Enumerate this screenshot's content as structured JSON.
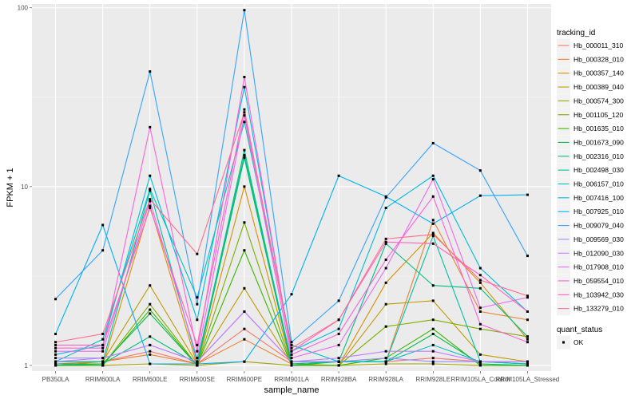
{
  "chart_data": {
    "type": "line",
    "xlabel": "sample_name",
    "ylabel": "FPKM + 1",
    "y_scale": "log10",
    "ylim": [
      0.93,
      105
    ],
    "y_ticks": [
      {
        "value": 1,
        "label": "1"
      },
      {
        "value": 10,
        "label": "10"
      },
      {
        "value": 100,
        "label": "100"
      }
    ],
    "grid": true,
    "legend_position": "right",
    "categories": [
      "PB350LA",
      "RRIM600LA",
      "RRIM600LE",
      "RRIM600SE",
      "RRIM600PE",
      "RRIM901LA",
      "RRIM928BA",
      "RRIM928LA",
      "RRIM928LE",
      "RRIM105LA_Control",
      "RRIM105LA_Stressed"
    ],
    "tick_labels": [
      "PB350LA",
      "RRIM600LA",
      "RRIM600LE",
      "RRIM600SE",
      "RRIM600PE",
      "RRIM901LA",
      "RRIM928BA",
      "RRIM928LA",
      "RRIM928LE",
      "RRIM105LA_Control",
      "RRIM105LA_Stressed"
    ],
    "series_legend_title": "tracking_id",
    "series": [
      {
        "name": "Hb_000011_310",
        "color": "#F8766D",
        "values": [
          1.05,
          1.05,
          1.2,
          1.02,
          1.6,
          1.05,
          1.05,
          1.05,
          1.1,
          1.05,
          1.02
        ]
      },
      {
        "name": "Hb_000328_010",
        "color": "#EA8331",
        "values": [
          1.02,
          1.05,
          1.15,
          1.02,
          1.4,
          1.02,
          1.05,
          1.05,
          6.5,
          2.0,
          1.8
        ]
      },
      {
        "name": "Hb_000357_140",
        "color": "#D89000",
        "values": [
          1.0,
          1.0,
          7.8,
          1.0,
          10.0,
          1.0,
          1.0,
          2.9,
          5.5,
          2.9,
          1.4
        ]
      },
      {
        "name": "Hb_000389_040",
        "color": "#C09B00",
        "values": [
          1.0,
          1.05,
          2.8,
          1.02,
          2.7,
          1.02,
          1.0,
          2.2,
          2.3,
          1.15,
          1.05
        ]
      },
      {
        "name": "Hb_000574_300",
        "color": "#A3A500",
        "values": [
          1.0,
          1.0,
          1.02,
          1.0,
          1.05,
          1.0,
          1.0,
          1.02,
          1.02,
          1.0,
          1.0
        ]
      },
      {
        "name": "Hb_001105_120",
        "color": "#7CAE00",
        "values": [
          1.0,
          1.0,
          2.2,
          1.0,
          6.3,
          1.0,
          1.0,
          1.65,
          1.8,
          1.6,
          1.45
        ]
      },
      {
        "name": "Hb_001635_010",
        "color": "#39B600",
        "values": [
          1.0,
          1.0,
          2.05,
          1.0,
          4.4,
          1.0,
          1.0,
          1.1,
          1.6,
          1.0,
          1.0
        ]
      },
      {
        "name": "Hb_001673_090",
        "color": "#00BB4E",
        "values": [
          1.0,
          1.02,
          1.95,
          1.0,
          14.5,
          1.0,
          1.05,
          1.05,
          1.5,
          1.02,
          1.0
        ]
      },
      {
        "name": "Hb_002316_010",
        "color": "#00BF7D",
        "values": [
          1.02,
          1.02,
          1.45,
          1.02,
          16.0,
          1.02,
          1.05,
          4.8,
          2.8,
          2.7,
          1.45
        ]
      },
      {
        "name": "Hb_002498_030",
        "color": "#00C1A3",
        "values": [
          1.05,
          1.05,
          9.5,
          1.05,
          15.0,
          1.05,
          1.05,
          1.05,
          5.3,
          1.05,
          1.02
        ]
      },
      {
        "name": "Hb_006157_010",
        "color": "#00BFC4",
        "values": [
          1.05,
          1.4,
          9.7,
          2.4,
          23.0,
          1.3,
          1.05,
          1.05,
          1.3,
          1.05,
          1.02
        ]
      },
      {
        "name": "Hb_007416_100",
        "color": "#00BAE0",
        "values": [
          1.15,
          1.3,
          11.5,
          1.8,
          36.0,
          1.2,
          1.6,
          7.6,
          11.5,
          3.5,
          2.0
        ]
      },
      {
        "name": "Hb_007925_010",
        "color": "#00B0F6",
        "values": [
          1.5,
          6.1,
          1.02,
          1.02,
          1.05,
          2.5,
          11.5,
          8.8,
          6.2,
          8.9,
          9.0
        ]
      },
      {
        "name": "Hb_009079_040",
        "color": "#35A2FF",
        "values": [
          2.35,
          4.4,
          44.0,
          2.2,
          97.0,
          1.35,
          2.3,
          8.7,
          17.5,
          12.3,
          4.1
        ]
      },
      {
        "name": "Hb_009569_030",
        "color": "#9590FF",
        "values": [
          1.1,
          1.1,
          1.3,
          1.05,
          2.0,
          1.05,
          1.05,
          1.1,
          1.05,
          1.05,
          1.05
        ]
      },
      {
        "name": "Hb_012090_030",
        "color": "#C77CFF",
        "values": [
          1.05,
          1.1,
          1.3,
          1.05,
          2.0,
          1.05,
          1.1,
          1.2,
          1.2,
          1.05,
          1.05
        ]
      },
      {
        "name": "Hb_017908_010",
        "color": "#E76BF3",
        "values": [
          1.2,
          1.2,
          8.3,
          1.1,
          25.0,
          1.1,
          1.3,
          3.5,
          11.0,
          2.1,
          2.4
        ]
      },
      {
        "name": "Hb_059554_010",
        "color": "#FA62DB",
        "values": [
          1.25,
          1.25,
          21.5,
          1.2,
          41.0,
          1.15,
          1.5,
          3.9,
          8.8,
          1.7,
          1.35
        ]
      },
      {
        "name": "Hb_103942_030",
        "color": "#FF62BC",
        "values": [
          1.3,
          1.3,
          7.6,
          1.3,
          27.0,
          1.2,
          1.8,
          4.9,
          4.8,
          3.2,
          2.0
        ]
      },
      {
        "name": "Hb_133279_010",
        "color": "#FF6C91",
        "values": [
          1.35,
          1.5,
          8.5,
          4.2,
          26.0,
          1.25,
          1.8,
          5.1,
          5.4,
          3.0,
          2.45
        ]
      }
    ],
    "shape_legend": {
      "title": "quant_status",
      "entries": [
        {
          "label": "OK"
        }
      ]
    }
  }
}
